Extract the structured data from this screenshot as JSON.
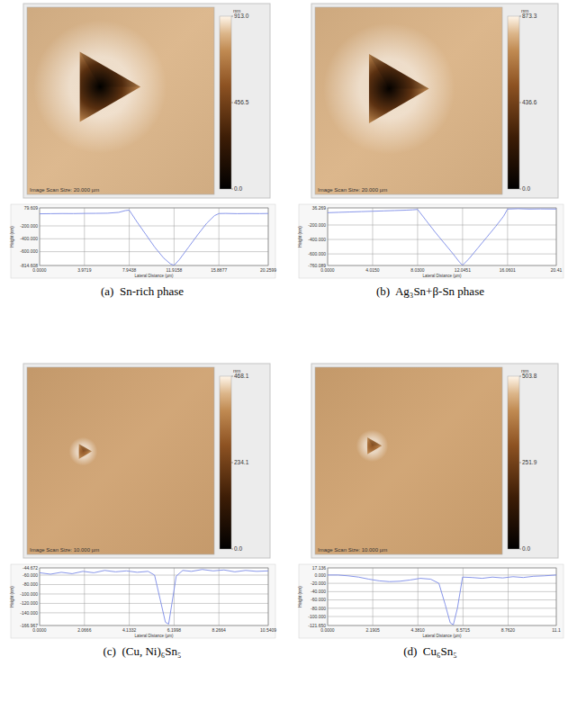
{
  "chart_data": [
    {
      "type": "heatmap",
      "caption": "(a)  Sn-rich phase",
      "scan_size_label": "Image Scan Size: 20.000 µm",
      "scan_size": 20,
      "colorbar": {
        "range": [
          0,
          913
        ],
        "ticks": [
          {
            "value": 913,
            "label": "913.0"
          },
          456.5,
          {
            "value": 0,
            "label": "0.0"
          }
        ],
        "unit": "nm"
      },
      "background": 820,
      "indent": {
        "x": 7.8,
        "y": 8.5,
        "side": 7.5,
        "depth": 815
      },
      "profile": {
        "type": "line",
        "color": "#7b8ae6",
        "grid": true,
        "xlabel": "Lateral Distance (µm)",
        "ylabel": "Height (nm)",
        "xlim": [
          0,
          20.2599
        ],
        "ylim": [
          -814.608,
          79.609
        ],
        "xticks": [
          {
            "value": 0,
            "label": "0.0000"
          },
          3.9719,
          7.9438,
          11.9158,
          15.8877,
          20.2599
        ],
        "yticks": [
          79.609,
          {
            "value": -200,
            "label": "-200.000"
          },
          {
            "value": -400,
            "label": "-400.000"
          },
          {
            "value": -600,
            "label": "-600.000"
          },
          -814.608
        ],
        "x": [
          0,
          1,
          2,
          3,
          4,
          5,
          6,
          7,
          7.6,
          7.94,
          8.6,
          9.4,
          10.2,
          11,
          11.6,
          11.92,
          12.4,
          13.2,
          14,
          14.8,
          15.5,
          15.9,
          16.5,
          17.5,
          18.5,
          19.5,
          20.2599
        ],
        "values": [
          -12,
          -10,
          -8,
          -9,
          -6,
          -5,
          -3,
          10,
          38,
          45,
          -130,
          -330,
          -530,
          -700,
          -790,
          -812,
          -720,
          -530,
          -340,
          -160,
          -40,
          -8,
          -6,
          -10,
          -8,
          -9,
          -7
        ]
      }
    },
    {
      "type": "heatmap",
      "caption": "(b)  Ag₃Sn+β-Sn phase",
      "scan_size_label": "Image Scan Size: 20.000 µm",
      "scan_size": 20,
      "colorbar": {
        "range": [
          0,
          873.3
        ],
        "ticks": [
          873.3,
          436.6,
          {
            "value": 0,
            "label": "0.0"
          }
        ],
        "unit": "nm"
      },
      "background": 780,
      "indent": {
        "x": 7.9,
        "y": 8.7,
        "side": 7.4,
        "depth": 760
      },
      "profile": {
        "type": "line",
        "color": "#7b8ae6",
        "grid": true,
        "xlabel": "Lateral Distance (µm)",
        "ylabel": "Height (nm)",
        "xlim": [
          0,
          20.41
        ],
        "ylim": [
          -760.089,
          36.269
        ],
        "xticks": [
          {
            "value": 0,
            "label": "0.0000"
          },
          {
            "value": 4.015,
            "label": "4.0150"
          },
          {
            "value": 8.03,
            "label": "8.0300"
          },
          12.0451,
          16.0601,
          20.41
        ],
        "yticks": [
          36.269,
          {
            "value": -200,
            "label": "-200.000"
          },
          {
            "value": -400,
            "label": "-400.000"
          },
          {
            "value": -600,
            "label": "-600.000"
          },
          -760.089
        ],
        "x": [
          0,
          1,
          2,
          3,
          4,
          5,
          6,
          7,
          7.6,
          8.03,
          8.8,
          9.6,
          10.4,
          11.2,
          11.8,
          12.05,
          12.6,
          13.4,
          14.2,
          15,
          15.7,
          16.06,
          17,
          18,
          19,
          20.41
        ],
        "values": [
          -30,
          -25,
          -20,
          -15,
          -10,
          -5,
          0,
          5,
          10,
          15,
          -140,
          -300,
          -450,
          -600,
          -720,
          -755,
          -670,
          -520,
          -370,
          -220,
          -80,
          20,
          25,
          20,
          22,
          20
        ]
      }
    },
    {
      "type": "heatmap",
      "caption": "(c)  (Cu, Ni)₆Sn₅",
      "scan_size_label": "Image Scan Size: 10.000 µm",
      "scan_size": 10,
      "colorbar": {
        "range": [
          0,
          468.1
        ],
        "ticks": [
          468.1,
          234.1,
          {
            "value": 0,
            "label": "0.0"
          }
        ],
        "unit": "nm"
      },
      "background": 400,
      "indent": {
        "x": 3.0,
        "y": 4.5,
        "side": 0.8,
        "depth": 110
      },
      "profile": {
        "type": "line",
        "color": "#7b8ae6",
        "grid": true,
        "xlabel": "Lateral Distance (µm)",
        "ylabel": "Height (nm)",
        "xlim": [
          0,
          10.5409
        ],
        "ylim": [
          -166.967,
          -44.672
        ],
        "xticks": [
          {
            "value": 0,
            "label": "0.0000"
          },
          2.0666,
          4.1332,
          6.1998,
          8.2664,
          10.5409
        ],
        "yticks": [
          -44.672,
          {
            "value": -60,
            "label": "-60.000"
          },
          {
            "value": -80,
            "label": "-80.000"
          },
          {
            "value": -100,
            "label": "-100.000"
          },
          {
            "value": -120,
            "label": "-120.000"
          },
          {
            "value": -140,
            "label": "-140.000"
          },
          -166.967
        ],
        "x": [
          0,
          0.5,
          1,
          1.5,
          2,
          2.5,
          3,
          3.5,
          4,
          4.5,
          5,
          5.3,
          5.55,
          5.8,
          5.95,
          6.1,
          6.3,
          6.6,
          7,
          7.5,
          8,
          8.5,
          9,
          9.5,
          10,
          10.5409
        ],
        "values": [
          -55,
          -58,
          -54,
          -57,
          -52,
          -55,
          -50,
          -53,
          -51,
          -54,
          -52,
          -60,
          -110,
          -160,
          -164,
          -120,
          -62,
          -50,
          -52,
          -48,
          -51,
          -49,
          -53,
          -50,
          -52,
          -51
        ]
      }
    },
    {
      "type": "heatmap",
      "caption": "(d)  Cu₆Sn₅",
      "scan_size_label": "Image Scan Size: 10.000 µm",
      "scan_size": 10,
      "colorbar": {
        "range": [
          0,
          503.8
        ],
        "ticks": [
          503.8,
          251.9,
          {
            "value": 0,
            "label": "0.0"
          }
        ],
        "unit": "nm"
      },
      "background": 430,
      "indent": {
        "x": 3.05,
        "y": 4.2,
        "side": 0.9,
        "depth": 121
      },
      "profile": {
        "type": "line",
        "color": "#7b8ae6",
        "grid": true,
        "xlabel": "Lateral Distance (µm)",
        "ylabel": "Height (nm)",
        "xlim": [
          0,
          11.1
        ],
        "ylim": [
          -121.65,
          17.136
        ],
        "xticks": [
          {
            "value": 0,
            "label": "0.0000"
          },
          2.1905,
          {
            "value": 4.381,
            "label": "4.3810"
          },
          6.5715,
          {
            "value": 8.762,
            "label": "8.7620"
          },
          11.1
        ],
        "yticks": [
          17.136,
          {
            "value": 0,
            "label": "0.000"
          },
          {
            "value": -20,
            "label": "-20.000"
          },
          {
            "value": -40,
            "label": "-40.000"
          },
          {
            "value": -60,
            "label": "-60.000"
          },
          {
            "value": -80,
            "label": "-80.000"
          },
          {
            "value": -100,
            "label": "-100.000"
          },
          {
            "value": -121.65,
            "label": "-121.650"
          }
        ],
        "x": [
          0,
          0.5,
          1,
          1.5,
          2,
          2.5,
          3,
          3.5,
          4,
          4.5,
          5,
          5.4,
          5.7,
          5.95,
          6.1,
          6.3,
          6.55,
          7,
          7.5,
          8,
          8.5,
          9,
          9.5,
          10,
          10.5,
          11.1
        ],
        "values": [
          0,
          0,
          -2,
          -5,
          -10,
          -14,
          -16,
          -15,
          -12,
          -8,
          -10,
          -20,
          -70,
          -115,
          -120,
          -80,
          -5,
          -6,
          -8,
          -5,
          -7,
          -4,
          -6,
          -3,
          -2,
          0
        ]
      }
    }
  ]
}
